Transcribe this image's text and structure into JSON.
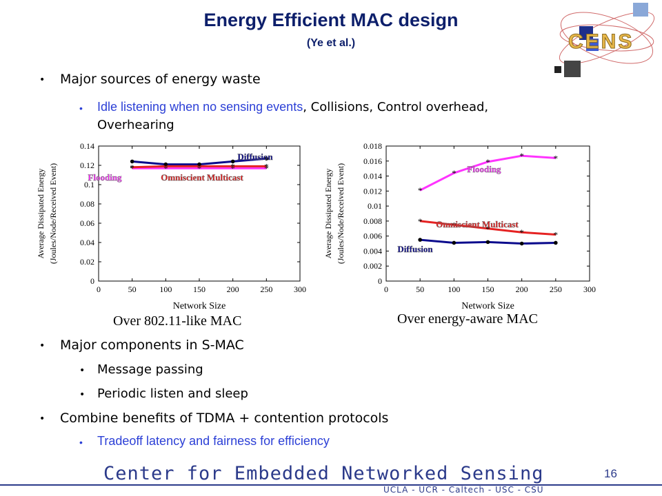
{
  "slide": {
    "title": "Energy Efficient MAC design",
    "subtitle": "(Ye et al.)",
    "page_number": "16"
  },
  "logo": {
    "text": "CENS"
  },
  "bullets": {
    "b1": "Major sources of energy waste",
    "b1_sub_blue": "Idle listening when no sensing events",
    "b1_sub_rest_line1": ", Collisions, Control overhead,",
    "b1_sub_line2": "Overhearing",
    "b2": "Major components in S-MAC",
    "b2_sub1": "Message passing",
    "b2_sub2": "Periodic listen and sleep",
    "b3": "Combine benefits of TDMA + contention protocols",
    "b3_sub": "Tradeoff latency and fairness for efficiency"
  },
  "captions": {
    "left": "Over 802.11-like MAC",
    "right": "Over energy-aware MAC"
  },
  "footer": {
    "main": "Center for Embedded Networked Sensing",
    "sub": "UCLA - UCR - Caltech - USC - CSU"
  },
  "colors": {
    "title": "#0d1f6b",
    "bullet_blue": "#2b3fd6",
    "flooding": "#ff33ff",
    "multicast": "#e52222",
    "diffusion": "#0a0a8c",
    "footer": "#2b3a8a"
  },
  "chart_data": [
    {
      "type": "line",
      "xlabel": "Network Size",
      "ylabel_line1": "Average Dissipated Energy",
      "ylabel_line2": "(Joules/Node/Received Event)",
      "xlim": [
        0,
        300
      ],
      "ylim": [
        0,
        0.14
      ],
      "xticks": [
        "0",
        "50",
        "100",
        "150",
        "200",
        "250",
        "300"
      ],
      "yticks": [
        "0",
        "0.02",
        "0.04",
        "0.06",
        "0.08",
        "0.1",
        "0.12",
        "0.14"
      ],
      "series": [
        {
          "name": "Diffusion",
          "color": "#0a0a8c",
          "marker": "dot",
          "x": [
            50,
            100,
            150,
            200,
            250
          ],
          "y": [
            0.124,
            0.121,
            0.121,
            0.124,
            0.127
          ]
        },
        {
          "name": "Flooding",
          "color": "#ff33ff",
          "marker": "star",
          "x": [
            50,
            100,
            150,
            200,
            250
          ],
          "y": [
            0.117,
            0.117,
            0.117,
            0.117,
            0.117
          ]
        },
        {
          "name": "Omniscient Multicast",
          "color": "#e52222",
          "marker": "star",
          "x": [
            50,
            100,
            150,
            200,
            250
          ],
          "y": [
            0.118,
            0.119,
            0.119,
            0.119,
            0.119
          ]
        }
      ]
    },
    {
      "type": "line",
      "xlabel": "Network Size",
      "ylabel_line1": "Average Dissipated Energy",
      "ylabel_line2": "(Joules/Node/Received Event)",
      "xlim": [
        0,
        300
      ],
      "ylim": [
        0,
        0.018
      ],
      "xticks": [
        "0",
        "50",
        "100",
        "150",
        "200",
        "250",
        "300"
      ],
      "yticks": [
        "0",
        "0.002",
        "0.004",
        "0.006",
        "0.008",
        "0.01",
        "0.012",
        "0.014",
        "0.016",
        "0.018"
      ],
      "series": [
        {
          "name": "Flooding",
          "color": "#ff33ff",
          "marker": "star",
          "x": [
            50,
            100,
            150,
            200,
            250
          ],
          "y": [
            0.0121,
            0.0144,
            0.0159,
            0.0167,
            0.0164
          ]
        },
        {
          "name": "Omniscient Multicast",
          "color": "#e52222",
          "marker": "star",
          "x": [
            50,
            100,
            150,
            200,
            250
          ],
          "y": [
            0.008,
            0.0075,
            0.007,
            0.0065,
            0.0062
          ]
        },
        {
          "name": "Diffusion",
          "color": "#0a0a8c",
          "marker": "dot",
          "x": [
            50,
            100,
            150,
            200,
            250
          ],
          "y": [
            0.0055,
            0.0051,
            0.0052,
            0.005,
            0.0051
          ]
        }
      ]
    }
  ]
}
